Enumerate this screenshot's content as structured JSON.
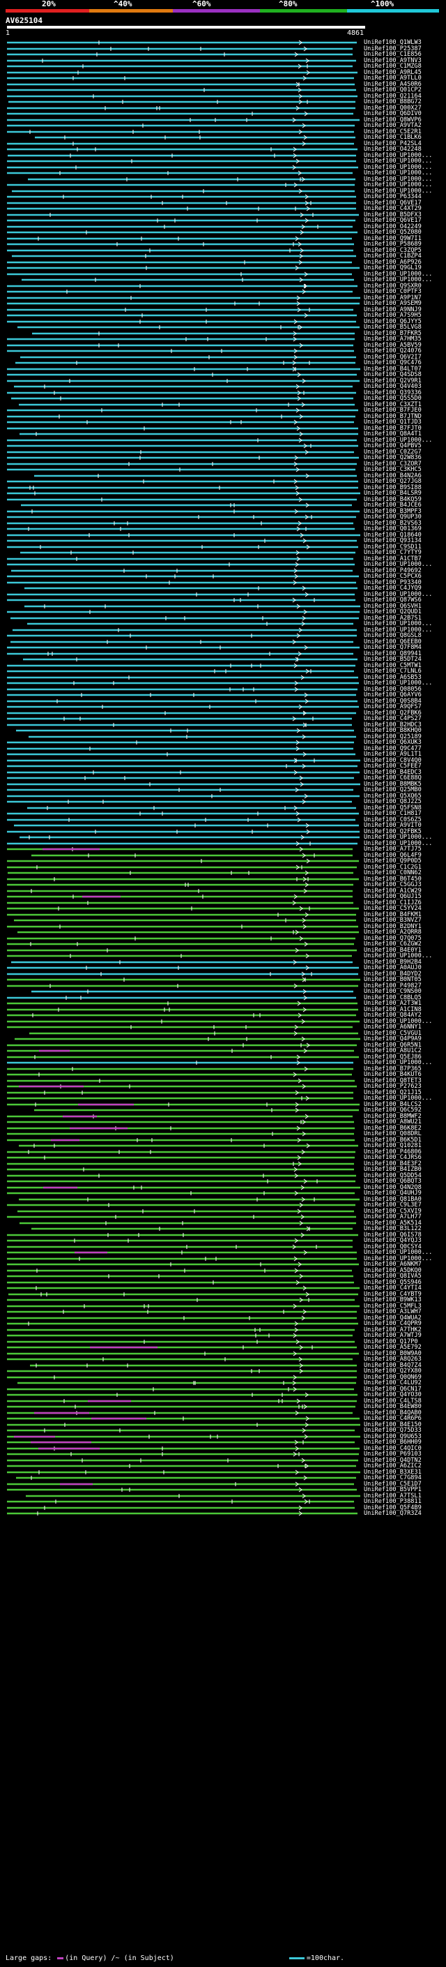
{
  "scale": {
    "labels": [
      "20%",
      "^40%",
      "^60%",
      "^80%",
      "^100%"
    ],
    "colors": [
      "#e02020",
      "#e07a10",
      "#9a30c0",
      "#20b020",
      "#20c8d8"
    ]
  },
  "query": {
    "name": "AV625104",
    "start": "1",
    "end": "4861"
  },
  "colors": {
    "cyan": "#3cc8d8",
    "green": "#4cc838",
    "gap": "#c040c0"
  },
  "hits": [
    {
      "id": "UniRef100_Q1WLW3",
      "c": "cyan"
    },
    {
      "id": "UniRef100_P25387",
      "c": "cyan"
    },
    {
      "id": "UniRef100_C1E856",
      "c": "cyan"
    },
    {
      "id": "UniRef100_A9TNV3",
      "c": "cyan"
    },
    {
      "id": "UniRef100_C1MZG8",
      "c": "cyan"
    },
    {
      "id": "UniRef100_A9RL45",
      "c": "cyan"
    },
    {
      "id": "UniRef100_A9TLL0",
      "c": "cyan"
    },
    {
      "id": "UniRef100_A4S0R6",
      "c": "cyan"
    },
    {
      "id": "UniRef100_Q01CP2",
      "c": "cyan"
    },
    {
      "id": "UniRef100_Q21164",
      "c": "cyan"
    },
    {
      "id": "UniRef100_B8BG72",
      "c": "cyan"
    },
    {
      "id": "UniRef100_Q00X27",
      "c": "cyan"
    },
    {
      "id": "UniRef100_Q6DIV0",
      "c": "cyan"
    },
    {
      "id": "UniRef100_Q8WVP6",
      "c": "cyan"
    },
    {
      "id": "UniRef100_A9VTA2",
      "c": "cyan"
    },
    {
      "id": "UniRef100_C5E2R1",
      "c": "cyan"
    },
    {
      "id": "UniRef100_C1BLK6",
      "c": "cyan"
    },
    {
      "id": "UniRef100_P42SL4",
      "c": "cyan"
    },
    {
      "id": "UniRef100_O42248",
      "c": "cyan"
    },
    {
      "id": "UniRef100_UP1000...",
      "c": "cyan"
    },
    {
      "id": "UniRef100_UP1000...",
      "c": "cyan"
    },
    {
      "id": "UniRef100_UP1000...",
      "c": "cyan"
    },
    {
      "id": "UniRef100_UP1000...",
      "c": "cyan"
    },
    {
      "id": "UniRef100_UP1000...",
      "c": "cyan"
    },
    {
      "id": "UniRef100_UP1000...",
      "c": "cyan"
    },
    {
      "id": "UniRef100_UP1000...",
      "c": "cyan"
    },
    {
      "id": "UniRef100_P63344",
      "c": "cyan"
    },
    {
      "id": "UniRef100_Q6VE17",
      "c": "cyan"
    },
    {
      "id": "UniRef100_C4XT29",
      "c": "cyan"
    },
    {
      "id": "UniRef100_B5DFX3",
      "c": "cyan"
    },
    {
      "id": "UniRef100_Q6VE17",
      "c": "cyan"
    },
    {
      "id": "UniRef100_O42249",
      "c": "cyan"
    },
    {
      "id": "UniRef100_Q5Z080",
      "c": "cyan"
    },
    {
      "id": "UniRef100_Q9W7I1",
      "c": "cyan"
    },
    {
      "id": "UniRef100_P58689",
      "c": "cyan"
    },
    {
      "id": "UniRef100_C3ZQP5",
      "c": "cyan"
    },
    {
      "id": "UniRef100_C1BZP4",
      "c": "cyan"
    },
    {
      "id": "UniRef100_A6P926",
      "c": "cyan"
    },
    {
      "id": "UniRef100_Q9GL19",
      "c": "cyan"
    },
    {
      "id": "UniRef100_UP1000...",
      "c": "cyan"
    },
    {
      "id": "UniRef100_UP1000...",
      "c": "cyan"
    },
    {
      "id": "UniRef100_Q9SXR0",
      "c": "cyan"
    },
    {
      "id": "UniRef100_C0PTF3",
      "c": "cyan"
    },
    {
      "id": "UniRef100_A9P1N7",
      "c": "cyan"
    },
    {
      "id": "UniRef100_A9SEM9",
      "c": "cyan"
    },
    {
      "id": "UniRef100_A9NNJ9",
      "c": "cyan"
    },
    {
      "id": "UniRef100_A7S9H5",
      "c": "cyan"
    },
    {
      "id": "UniRef100_Q6JYY5",
      "c": "cyan"
    },
    {
      "id": "UniRef100_B5LVG8",
      "c": "cyan"
    },
    {
      "id": "UniRef100_B7FKR5",
      "c": "cyan"
    },
    {
      "id": "UniRef100_A7HM35",
      "c": "cyan"
    },
    {
      "id": "UniRef100_A5BV59",
      "c": "cyan"
    },
    {
      "id": "UniRef100_Q24076",
      "c": "cyan"
    },
    {
      "id": "UniRef100_Q6V2I7",
      "c": "cyan"
    },
    {
      "id": "UniRef100_Q9C476",
      "c": "cyan"
    },
    {
      "id": "UniRef100_B4LT07",
      "c": "cyan"
    },
    {
      "id": "UniRef100_Q4SDS8",
      "c": "cyan"
    },
    {
      "id": "UniRef100_Q2V9R1",
      "c": "cyan"
    },
    {
      "id": "UniRef100_Q4V403",
      "c": "cyan"
    },
    {
      "id": "UniRef100_Q39336",
      "c": "cyan"
    },
    {
      "id": "UniRef100_Q5S5D0",
      "c": "cyan"
    },
    {
      "id": "UniRef100_C3XZT1",
      "c": "cyan"
    },
    {
      "id": "UniRef100_B7FJE0",
      "c": "cyan"
    },
    {
      "id": "UniRef100_B7JTND",
      "c": "cyan"
    },
    {
      "id": "UniRef100_Q1TJD3",
      "c": "cyan"
    },
    {
      "id": "UniRef100_B7FJT0",
      "c": "cyan"
    },
    {
      "id": "UniRef100_Q8A4T1",
      "c": "cyan"
    },
    {
      "id": "UniRef100_UP1000...",
      "c": "cyan"
    },
    {
      "id": "UniRef100_Q4PBV5",
      "c": "cyan"
    },
    {
      "id": "UniRef100_C0Z2G7",
      "c": "cyan"
    },
    {
      "id": "UniRef100_Q2W836",
      "c": "cyan"
    },
    {
      "id": "UniRef100_C3ZOR7",
      "c": "cyan"
    },
    {
      "id": "UniRef100_C3KHC5",
      "c": "cyan"
    },
    {
      "id": "UniRef100_B4N2A6",
      "c": "cyan"
    },
    {
      "id": "UniRef100_Q27JG8",
      "c": "cyan"
    },
    {
      "id": "UniRef100_B9SI88",
      "c": "cyan"
    },
    {
      "id": "UniRef100_B4LSR9",
      "c": "cyan"
    },
    {
      "id": "UniRef100_B4KQ59",
      "c": "cyan"
    },
    {
      "id": "UniRef100_B4JCE6",
      "c": "cyan"
    },
    {
      "id": "UniRef100_B3MPF3",
      "c": "cyan"
    },
    {
      "id": "UniRef100_Q9UP30",
      "c": "cyan"
    },
    {
      "id": "UniRef100_B2VS63",
      "c": "cyan"
    },
    {
      "id": "UniRef100_Q01369",
      "c": "cyan"
    },
    {
      "id": "UniRef100_Q18640",
      "c": "cyan"
    },
    {
      "id": "UniRef100_Q93134",
      "c": "cyan"
    },
    {
      "id": "UniRef100_C9SD11",
      "c": "cyan"
    },
    {
      "id": "UniRef100_C7YTY9",
      "c": "cyan"
    },
    {
      "id": "UniRef100_A1CTB7",
      "c": "cyan"
    },
    {
      "id": "UniRef100_UP1000...",
      "c": "cyan"
    },
    {
      "id": "UniRef100_P49692",
      "c": "cyan"
    },
    {
      "id": "UniRef100_C5PCX6",
      "c": "cyan"
    },
    {
      "id": "UniRef100_P93340",
      "c": "cyan"
    },
    {
      "id": "UniRef100_C4JYQ9",
      "c": "cyan"
    },
    {
      "id": "UniRef100_UP1000...",
      "c": "cyan"
    },
    {
      "id": "UniRef100_Q87WS6",
      "c": "cyan"
    },
    {
      "id": "UniRef100_Q6SVH1",
      "c": "cyan"
    },
    {
      "id": "UniRef100_Q2QUD1",
      "c": "cyan"
    },
    {
      "id": "UniRef100_A2B7S1",
      "c": "cyan"
    },
    {
      "id": "UniRef100_UP1000...",
      "c": "cyan"
    },
    {
      "id": "UniRef100_UP1000...",
      "c": "cyan"
    },
    {
      "id": "UniRef100_Q8GSL8",
      "c": "cyan"
    },
    {
      "id": "UniRef100_Q6EEB0",
      "c": "cyan"
    },
    {
      "id": "UniRef100_Q7F8M4",
      "c": "cyan"
    },
    {
      "id": "UniRef100_Q89941",
      "c": "cyan"
    },
    {
      "id": "UniRef100_B5DT24",
      "c": "cyan"
    },
    {
      "id": "UniRef100_C5MTW1",
      "c": "cyan"
    },
    {
      "id": "UniRef100_C7LNL6",
      "c": "cyan"
    },
    {
      "id": "UniRef100_A6SB53",
      "c": "cyan"
    },
    {
      "id": "UniRef100_UP1000...",
      "c": "cyan"
    },
    {
      "id": "UniRef100_Q08056",
      "c": "cyan"
    },
    {
      "id": "UniRef100_Q6AYV6",
      "c": "cyan"
    },
    {
      "id": "UniRef100_Q0S8B4",
      "c": "cyan"
    },
    {
      "id": "UniRef100_A9QFS7",
      "c": "cyan"
    },
    {
      "id": "UniRef100_Q2FBK6",
      "c": "cyan"
    },
    {
      "id": "UniRef100_C4PS27",
      "c": "cyan"
    },
    {
      "id": "UniRef100_B2HDC3",
      "c": "cyan"
    },
    {
      "id": "UniRef100_B8KHQ0",
      "c": "cyan"
    },
    {
      "id": "UniRef100_Q25189",
      "c": "cyan"
    },
    {
      "id": "UniRef100_Q6XUK3",
      "c": "cyan"
    },
    {
      "id": "UniRef100_Q9C477",
      "c": "cyan"
    },
    {
      "id": "UniRef100_A9L1T1",
      "c": "cyan"
    },
    {
      "id": "UniRef100_C8V4Q0",
      "c": "cyan"
    },
    {
      "id": "UniRef100_C5FEE7",
      "c": "cyan"
    },
    {
      "id": "UniRef100_B4EDC3",
      "c": "cyan"
    },
    {
      "id": "UniRef100_C6E88Q",
      "c": "cyan"
    },
    {
      "id": "UniRef100_B8MBK5",
      "c": "cyan"
    },
    {
      "id": "UniRef100_Q25MB0",
      "c": "cyan"
    },
    {
      "id": "UniRef100_Q5XQ65",
      "c": "cyan"
    },
    {
      "id": "UniRef100_Q8J2Z5",
      "c": "cyan"
    },
    {
      "id": "UniRef100_Q5FSN8",
      "c": "cyan"
    },
    {
      "id": "UniRef100_C1H817",
      "c": "cyan"
    },
    {
      "id": "UniRef100_C0S6Z5",
      "c": "cyan"
    },
    {
      "id": "UniRef100_A9VIT0",
      "c": "cyan"
    },
    {
      "id": "UniRef100_Q2FBK5",
      "c": "cyan"
    },
    {
      "id": "UniRef100_UP1000...",
      "c": "cyan"
    },
    {
      "id": "UniRef100_UP1000...",
      "c": "cyan"
    },
    {
      "id": "UniRef100_A7TJ75",
      "c": "green"
    },
    {
      "id": "UniRef100_Q6L4F9",
      "c": "green"
    },
    {
      "id": "UniRef100_Q9P0D5",
      "c": "green"
    },
    {
      "id": "UniRef100_C1C2G1",
      "c": "green"
    },
    {
      "id": "UniRef100_C0NN62",
      "c": "green"
    },
    {
      "id": "UniRef100_B6T450",
      "c": "green"
    },
    {
      "id": "UniRef100_C5GGJ3",
      "c": "green"
    },
    {
      "id": "UniRef100_A1CW29",
      "c": "green"
    },
    {
      "id": "UniRef100_Q6UJ15",
      "c": "green"
    },
    {
      "id": "UniRef100_C1IJZ6",
      "c": "green"
    },
    {
      "id": "UniRef100_C5YV24",
      "c": "green"
    },
    {
      "id": "UniRef100_B4FKM1",
      "c": "green"
    },
    {
      "id": "UniRef100_B3NVZ7",
      "c": "green"
    },
    {
      "id": "UniRef100_B2DNY1",
      "c": "green"
    },
    {
      "id": "UniRef100_A2QRR8",
      "c": "green"
    },
    {
      "id": "UniRef100_Q7Q075",
      "c": "green"
    },
    {
      "id": "UniRef100_C6ZGW2",
      "c": "green"
    },
    {
      "id": "UniRef100_B4E0Y1",
      "c": "green"
    },
    {
      "id": "UniRef100_UP1000...",
      "c": "green"
    },
    {
      "id": "UniRef100_B9H2B4",
      "c": "cyan"
    },
    {
      "id": "UniRef100_A0AUJ0",
      "c": "cyan"
    },
    {
      "id": "UniRef100_B4DYD2",
      "c": "cyan"
    },
    {
      "id": "UniRef100_B0NT05",
      "c": "green"
    },
    {
      "id": "UniRef100_P49827",
      "c": "green"
    },
    {
      "id": "UniRef100_C9NS00",
      "c": "cyan"
    },
    {
      "id": "UniRef100_C8BLQ5",
      "c": "cyan"
    },
    {
      "id": "UniRef100_A2T3W1",
      "c": "green"
    },
    {
      "id": "UniRef100_A1CIN8",
      "c": "green"
    },
    {
      "id": "UniRef100_Q84AY2",
      "c": "green"
    },
    {
      "id": "UniRef100_UP1000...",
      "c": "green"
    },
    {
      "id": "UniRef100_A6NNY1",
      "c": "green"
    },
    {
      "id": "UniRef100_C5VGU1",
      "c": "green"
    },
    {
      "id": "UniRef100_Q4P9A9",
      "c": "green"
    },
    {
      "id": "UniRef100_Q6R5N1",
      "c": "green"
    },
    {
      "id": "UniRef100_A8U1C2",
      "c": "green"
    },
    {
      "id": "UniRef100_Q5EJ86",
      "c": "green"
    },
    {
      "id": "UniRef100_UP1000...",
      "c": "cyan"
    },
    {
      "id": "UniRef100_B7P365",
      "c": "green"
    },
    {
      "id": "UniRef100_B4KUT6",
      "c": "green"
    },
    {
      "id": "UniRef100_Q8TET3",
      "c": "green"
    },
    {
      "id": "UniRef100_P27623",
      "c": "green"
    },
    {
      "id": "UniRef100_Q21J15",
      "c": "green"
    },
    {
      "id": "UniRef100_UP1000...",
      "c": "green"
    },
    {
      "id": "UniRef100_B4LCS2",
      "c": "green"
    },
    {
      "id": "UniRef100_Q6C592",
      "c": "green"
    },
    {
      "id": "UniRef100_B8MWF2",
      "c": "green"
    },
    {
      "id": "UniRef100_A8WU21",
      "c": "green"
    },
    {
      "id": "UniRef100_B6K8E2",
      "c": "green"
    },
    {
      "id": "UniRef100_Q08DRL",
      "c": "green"
    },
    {
      "id": "UniRef100_B6K5D1",
      "c": "green"
    },
    {
      "id": "UniRef100_Q10281",
      "c": "green"
    },
    {
      "id": "UniRef100_P46806",
      "c": "green"
    },
    {
      "id": "UniRef100_C4JRS6",
      "c": "green"
    },
    {
      "id": "UniRef100_B4E3F2",
      "c": "green"
    },
    {
      "id": "UniRef100_B4IZB0",
      "c": "green"
    },
    {
      "id": "UniRef100_Q5DD54",
      "c": "green"
    },
    {
      "id": "UniRef100_Q6BQT3",
      "c": "green"
    },
    {
      "id": "UniRef100_Q4N2Q8",
      "c": "green"
    },
    {
      "id": "UniRef100_Q4UHJ9",
      "c": "green"
    },
    {
      "id": "UniRef100_Q81BA0",
      "c": "green"
    },
    {
      "id": "UniRef100_C9L3E7",
      "c": "green"
    },
    {
      "id": "UniRef100_C5XVI9",
      "c": "green"
    },
    {
      "id": "UniRef100_A7LH77",
      "c": "green"
    },
    {
      "id": "UniRef100_A5K514",
      "c": "green"
    },
    {
      "id": "UniRef100_B3L122",
      "c": "green"
    },
    {
      "id": "UniRef100_Q6IS78",
      "c": "green"
    },
    {
      "id": "UniRef100_Q4YQJ3",
      "c": "green"
    },
    {
      "id": "UniRef100_Q0CSY4",
      "c": "green"
    },
    {
      "id": "UniRef100_UP1000...",
      "c": "green"
    },
    {
      "id": "UniRef100_UP1000...",
      "c": "green"
    },
    {
      "id": "UniRef100_A6NKM7",
      "c": "green"
    },
    {
      "id": "UniRef100_A5DKQ0",
      "c": "green"
    },
    {
      "id": "UniRef100_Q8IVA5",
      "c": "green"
    },
    {
      "id": "UniRef100_Q5S946",
      "c": "green"
    },
    {
      "id": "UniRef100_C4YTI4",
      "c": "green"
    },
    {
      "id": "UniRef100_C4YBT9",
      "c": "green"
    },
    {
      "id": "UniRef100_B9WK13",
      "c": "green"
    },
    {
      "id": "UniRef100_C5MFL3",
      "c": "green"
    },
    {
      "id": "UniRef100_A3LWH7",
      "c": "green"
    },
    {
      "id": "UniRef100_Q4WUA2",
      "c": "green"
    },
    {
      "id": "UniRef100_C4QPR9",
      "c": "green"
    },
    {
      "id": "UniRef100_A7THK2",
      "c": "green"
    },
    {
      "id": "UniRef100_A7WTJ9",
      "c": "green"
    },
    {
      "id": "UniRef100_Q17P0",
      "c": "green"
    },
    {
      "id": "UniRef100_A5E792",
      "c": "green"
    },
    {
      "id": "UniRef100_B0W9A0",
      "c": "green"
    },
    {
      "id": "UniRef100_A8Q263",
      "c": "green"
    },
    {
      "id": "UniRef100_B4Q7Z4",
      "c": "green"
    },
    {
      "id": "UniRef100_Q2YX80",
      "c": "green"
    },
    {
      "id": "UniRef100_Q0QN69",
      "c": "green"
    },
    {
      "id": "UniRef100_C4LU92",
      "c": "green"
    },
    {
      "id": "UniRef100_Q6CN17",
      "c": "green"
    },
    {
      "id": "UniRef100_Q4YO30",
      "c": "green"
    },
    {
      "id": "UniRef100_C4LTS8",
      "c": "green"
    },
    {
      "id": "UniRef100_B4EW80",
      "c": "green"
    },
    {
      "id": "UniRef100_B4QAB0",
      "c": "green"
    },
    {
      "id": "UniRef100_C4R6P6",
      "c": "green"
    },
    {
      "id": "UniRef100_B4E150",
      "c": "green"
    },
    {
      "id": "UniRef100_Q75D33",
      "c": "green"
    },
    {
      "id": "UniRef100_Q9U653",
      "c": "green"
    },
    {
      "id": "UniRef100_B6HH09",
      "c": "green"
    },
    {
      "id": "UniRef100_C4QIC0",
      "c": "green"
    },
    {
      "id": "UniRef100_P69103",
      "c": "green"
    },
    {
      "id": "UniRef100_Q4DTN2",
      "c": "green"
    },
    {
      "id": "UniRef100_A6ZIC2",
      "c": "green"
    },
    {
      "id": "UniRef100_B3XE31",
      "c": "green"
    },
    {
      "id": "UniRef100_C7G894",
      "c": "green"
    },
    {
      "id": "UniRef100_C5E1D7",
      "c": "green"
    },
    {
      "id": "UniRef100_B5VPP1",
      "c": "green"
    },
    {
      "id": "UniRef100_A7TSL1",
      "c": "green"
    },
    {
      "id": "UniRef100_P38811",
      "c": "green"
    },
    {
      "id": "UniRef100_Q5F4B9",
      "c": "green"
    },
    {
      "id": "UniRef100_Q7R3Z4",
      "c": "green"
    }
  ],
  "footer": {
    "prefix": "Large gaps:",
    "in_query": "(in Query)",
    "in_subject": "/~ (in Subject)",
    "scale_text": "=100char."
  }
}
